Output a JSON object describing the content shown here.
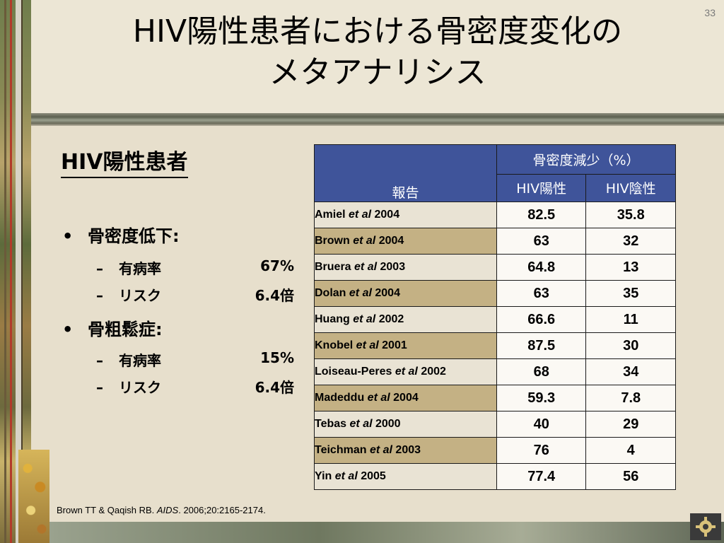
{
  "page_number": "33",
  "title_line1": "HIV陽性患者における骨密度変化の",
  "title_line2": "メタアナリシス",
  "subtitle": "HIV陽性患者",
  "bullets": [
    {
      "label": "骨密度低下:",
      "items": [
        {
          "label": "有病率",
          "value": "67%"
        },
        {
          "label": "リスク",
          "value": "6.4倍"
        }
      ]
    },
    {
      "label": "骨粗鬆症:",
      "items": [
        {
          "label": "有病率",
          "value": "15%"
        },
        {
          "label": "リスク",
          "value": "6.4倍"
        }
      ]
    }
  ],
  "table": {
    "header_report": "報告",
    "header_group": "骨密度減少（%）",
    "col_pos": "HIV陽性",
    "col_neg": "HIV陰性",
    "rows": [
      {
        "author": "Amiel",
        "etal": "et al",
        "year": "2004",
        "pos": "82.5",
        "neg": "35.8"
      },
      {
        "author": "Brown",
        "etal": "et al",
        "year": "2004",
        "pos": "63",
        "neg": "32"
      },
      {
        "author": "Bruera",
        "etal": "et al",
        "year": "2003",
        "pos": "64.8",
        "neg": "13"
      },
      {
        "author": "Dolan",
        "etal": "et al",
        "year": "2004",
        "pos": "63",
        "neg": "35"
      },
      {
        "author": "Huang",
        "etal": "et al",
        "year": "2002",
        "pos": "66.6",
        "neg": "11"
      },
      {
        "author": "Knobel",
        "etal": "et al",
        "year": "2001",
        "pos": "87.5",
        "neg": "30"
      },
      {
        "author": "Loiseau-Peres",
        "etal": "et al",
        "year": "2002",
        "pos": "68",
        "neg": "34"
      },
      {
        "author": "Madeddu",
        "etal": "et al",
        "year": "2004",
        "pos": "59.3",
        "neg": "7.8"
      },
      {
        "author": "Tebas",
        "etal": "et al",
        "year": "2000",
        "pos": "40",
        "neg": "29"
      },
      {
        "author": "Teichman",
        "etal": "et al",
        "year": "2003",
        "pos": "76",
        "neg": "4"
      },
      {
        "author": "Yin",
        "etal": "et al",
        "year": "2005",
        "pos": "77.4",
        "neg": "56"
      }
    ]
  },
  "citation": {
    "authors": "Brown TT & Qaqish RB.",
    "journal": "AIDS",
    "details": ". 2006;20:2165-2174."
  },
  "icons": {
    "gear": "gear-icon"
  },
  "colors": {
    "header_blue": "#3f549a",
    "row_tan": "#c4b184",
    "background": "#e7dfcc"
  }
}
